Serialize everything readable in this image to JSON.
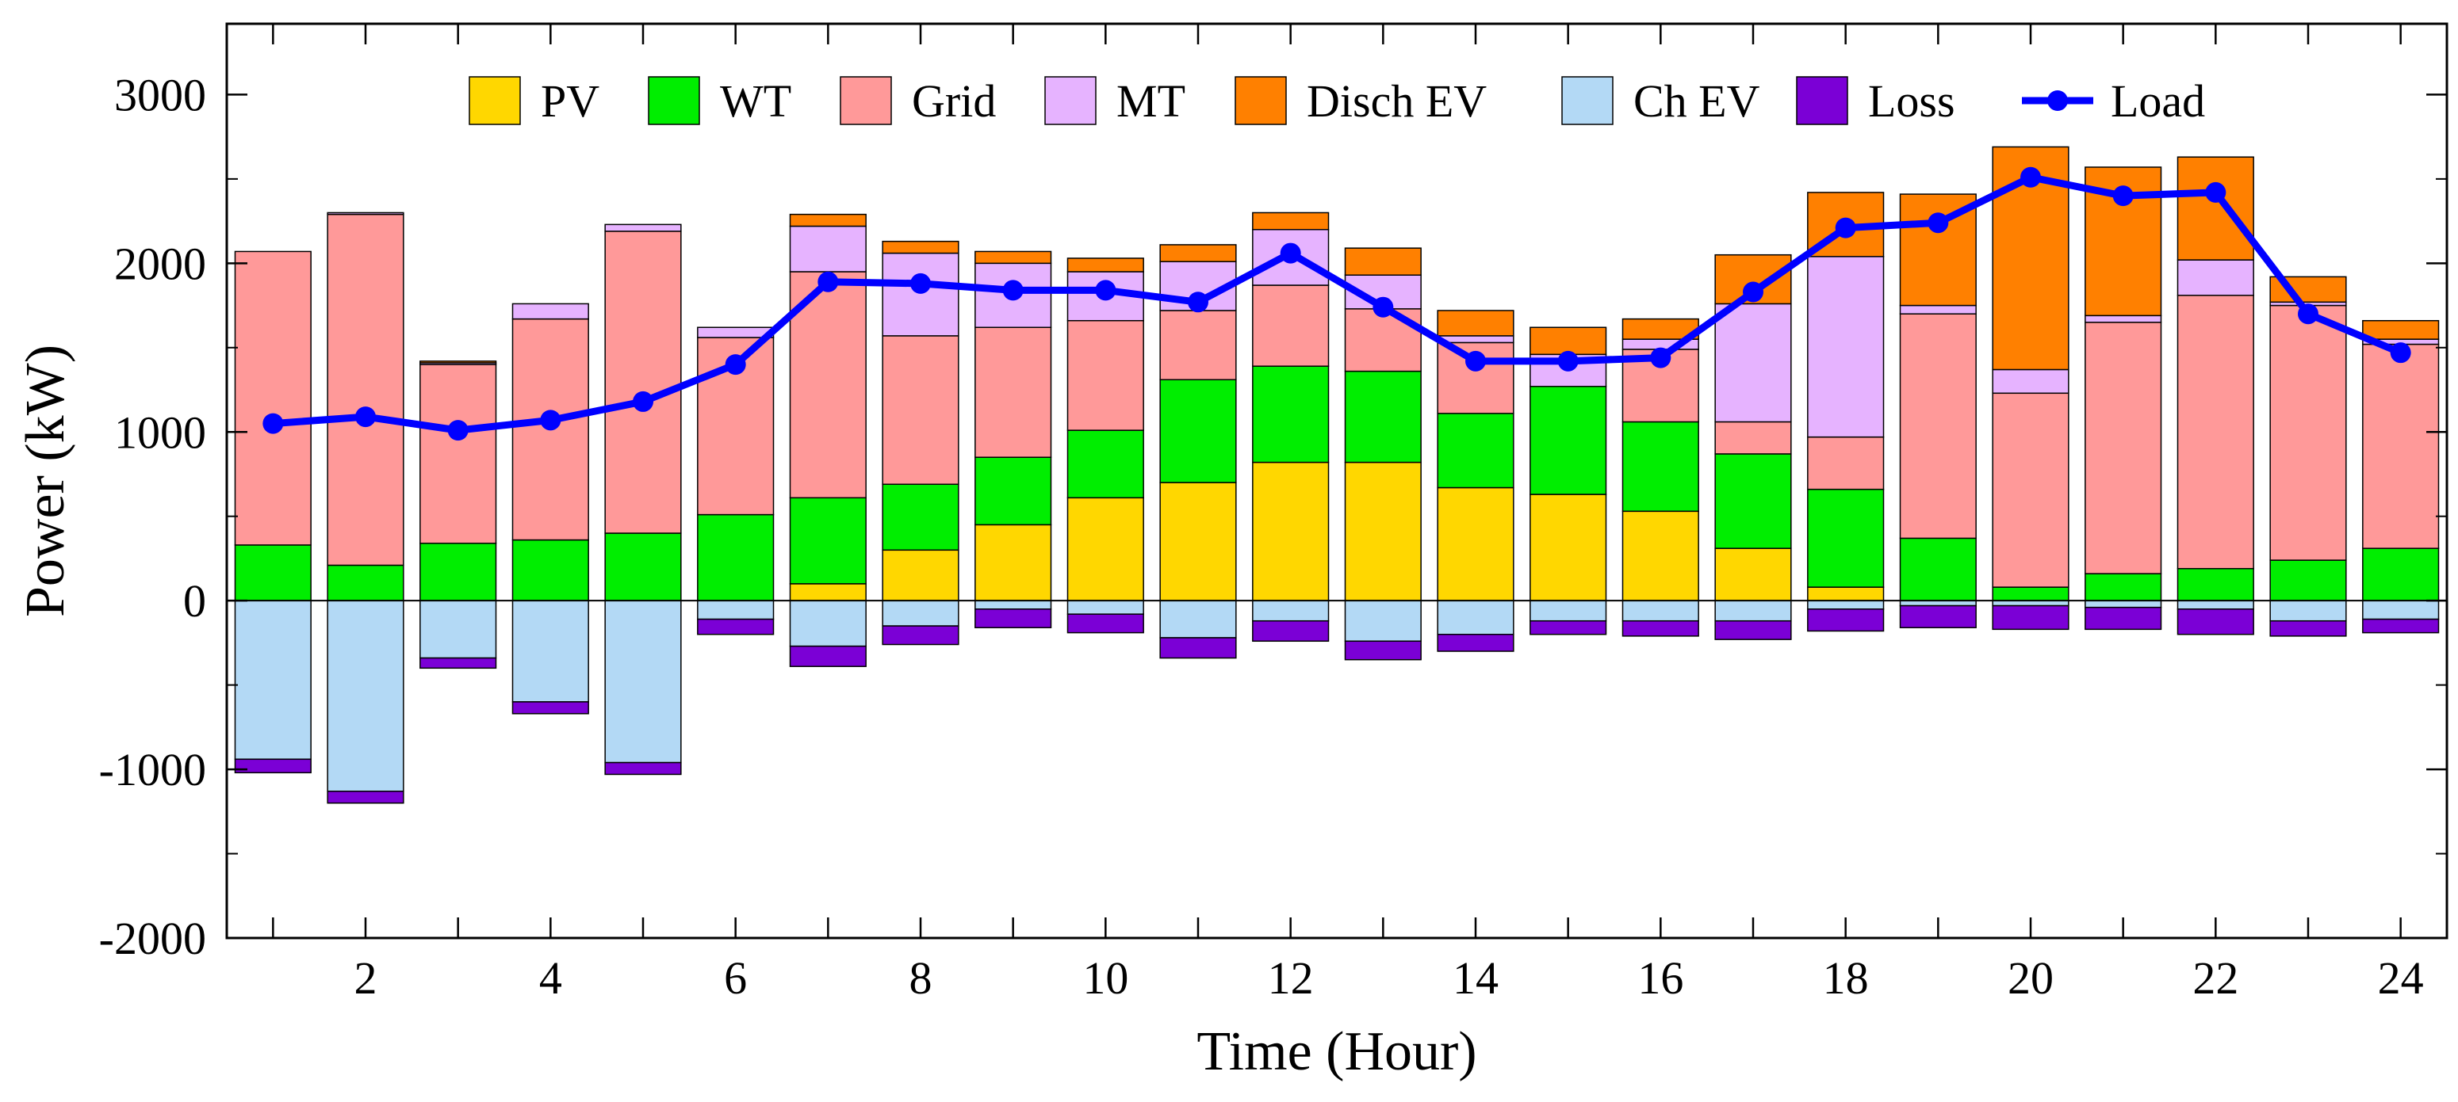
{
  "chart_data": {
    "type": "bar",
    "stacked": true,
    "title": "",
    "xlabel": "Time (Hour)",
    "ylabel": "Power (kW)",
    "xlim": [
      0.5,
      24.5
    ],
    "ylim": [
      -2000,
      3000
    ],
    "xticks": [
      2,
      4,
      6,
      8,
      10,
      12,
      14,
      16,
      18,
      20,
      22,
      24
    ],
    "yticks": [
      -2000,
      -1000,
      0,
      1000,
      2000,
      3000
    ],
    "grid": false,
    "legend_position": "top",
    "categories": [
      1,
      2,
      3,
      4,
      5,
      6,
      7,
      8,
      9,
      10,
      11,
      12,
      13,
      14,
      15,
      16,
      17,
      18,
      19,
      20,
      21,
      22,
      23,
      24
    ],
    "positive_series": [
      {
        "name": "PV",
        "color": "#FFD700",
        "values": [
          0,
          0,
          0,
          0,
          0,
          0,
          100,
          300,
          450,
          610,
          700,
          820,
          820,
          670,
          630,
          530,
          310,
          80,
          0,
          0,
          0,
          0,
          0,
          0
        ]
      },
      {
        "name": "WT",
        "color": "#00EE00",
        "values": [
          330,
          210,
          340,
          360,
          400,
          510,
          510,
          390,
          400,
          400,
          610,
          570,
          540,
          440,
          640,
          530,
          560,
          580,
          370,
          80,
          160,
          190,
          240,
          310
        ]
      },
      {
        "name": "Grid",
        "color": "#FF9999",
        "values": [
          1740,
          2080,
          1060,
          1310,
          1790,
          1050,
          1340,
          880,
          770,
          650,
          410,
          480,
          370,
          420,
          0,
          430,
          190,
          310,
          1330,
          1150,
          1490,
          1620,
          1510,
          1210
        ]
      },
      {
        "name": "MT",
        "color": "#E6B3FF",
        "values": [
          0,
          10,
          10,
          90,
          40,
          60,
          270,
          490,
          380,
          290,
          290,
          330,
          200,
          40,
          190,
          60,
          700,
          1070,
          50,
          140,
          40,
          210,
          20,
          30
        ]
      },
      {
        "name": "Disch EV",
        "color": "#FF8000",
        "values": [
          0,
          0,
          10,
          0,
          0,
          0,
          70,
          70,
          70,
          80,
          100,
          100,
          160,
          150,
          160,
          120,
          290,
          380,
          660,
          1320,
          880,
          610,
          150,
          110
        ]
      }
    ],
    "negative_series": [
      {
        "name": "Ch EV",
        "color": "#B3D9F5",
        "values": [
          -940,
          -1130,
          -340,
          -600,
          -960,
          -110,
          -270,
          -150,
          -50,
          -80,
          -220,
          -120,
          -240,
          -200,
          -120,
          -120,
          -120,
          -50,
          -30,
          -30,
          -40,
          -50,
          -120,
          -110
        ]
      },
      {
        "name": "Loss",
        "color": "#7B00D6",
        "values": [
          -80,
          -70,
          -60,
          -70,
          -70,
          -90,
          -120,
          -110,
          -110,
          -110,
          -120,
          -120,
          -110,
          -100,
          -80,
          -90,
          -110,
          -130,
          -130,
          -140,
          -130,
          -150,
          -90,
          -80
        ]
      }
    ],
    "line_series": {
      "name": "Load",
      "color": "#0000FF",
      "values": [
        1050,
        1090,
        1010,
        1070,
        1180,
        1400,
        1890,
        1880,
        1840,
        1840,
        1770,
        2060,
        1740,
        1420,
        1420,
        1440,
        1830,
        2210,
        2240,
        2510,
        2400,
        2420,
        1700,
        1470
      ]
    }
  }
}
